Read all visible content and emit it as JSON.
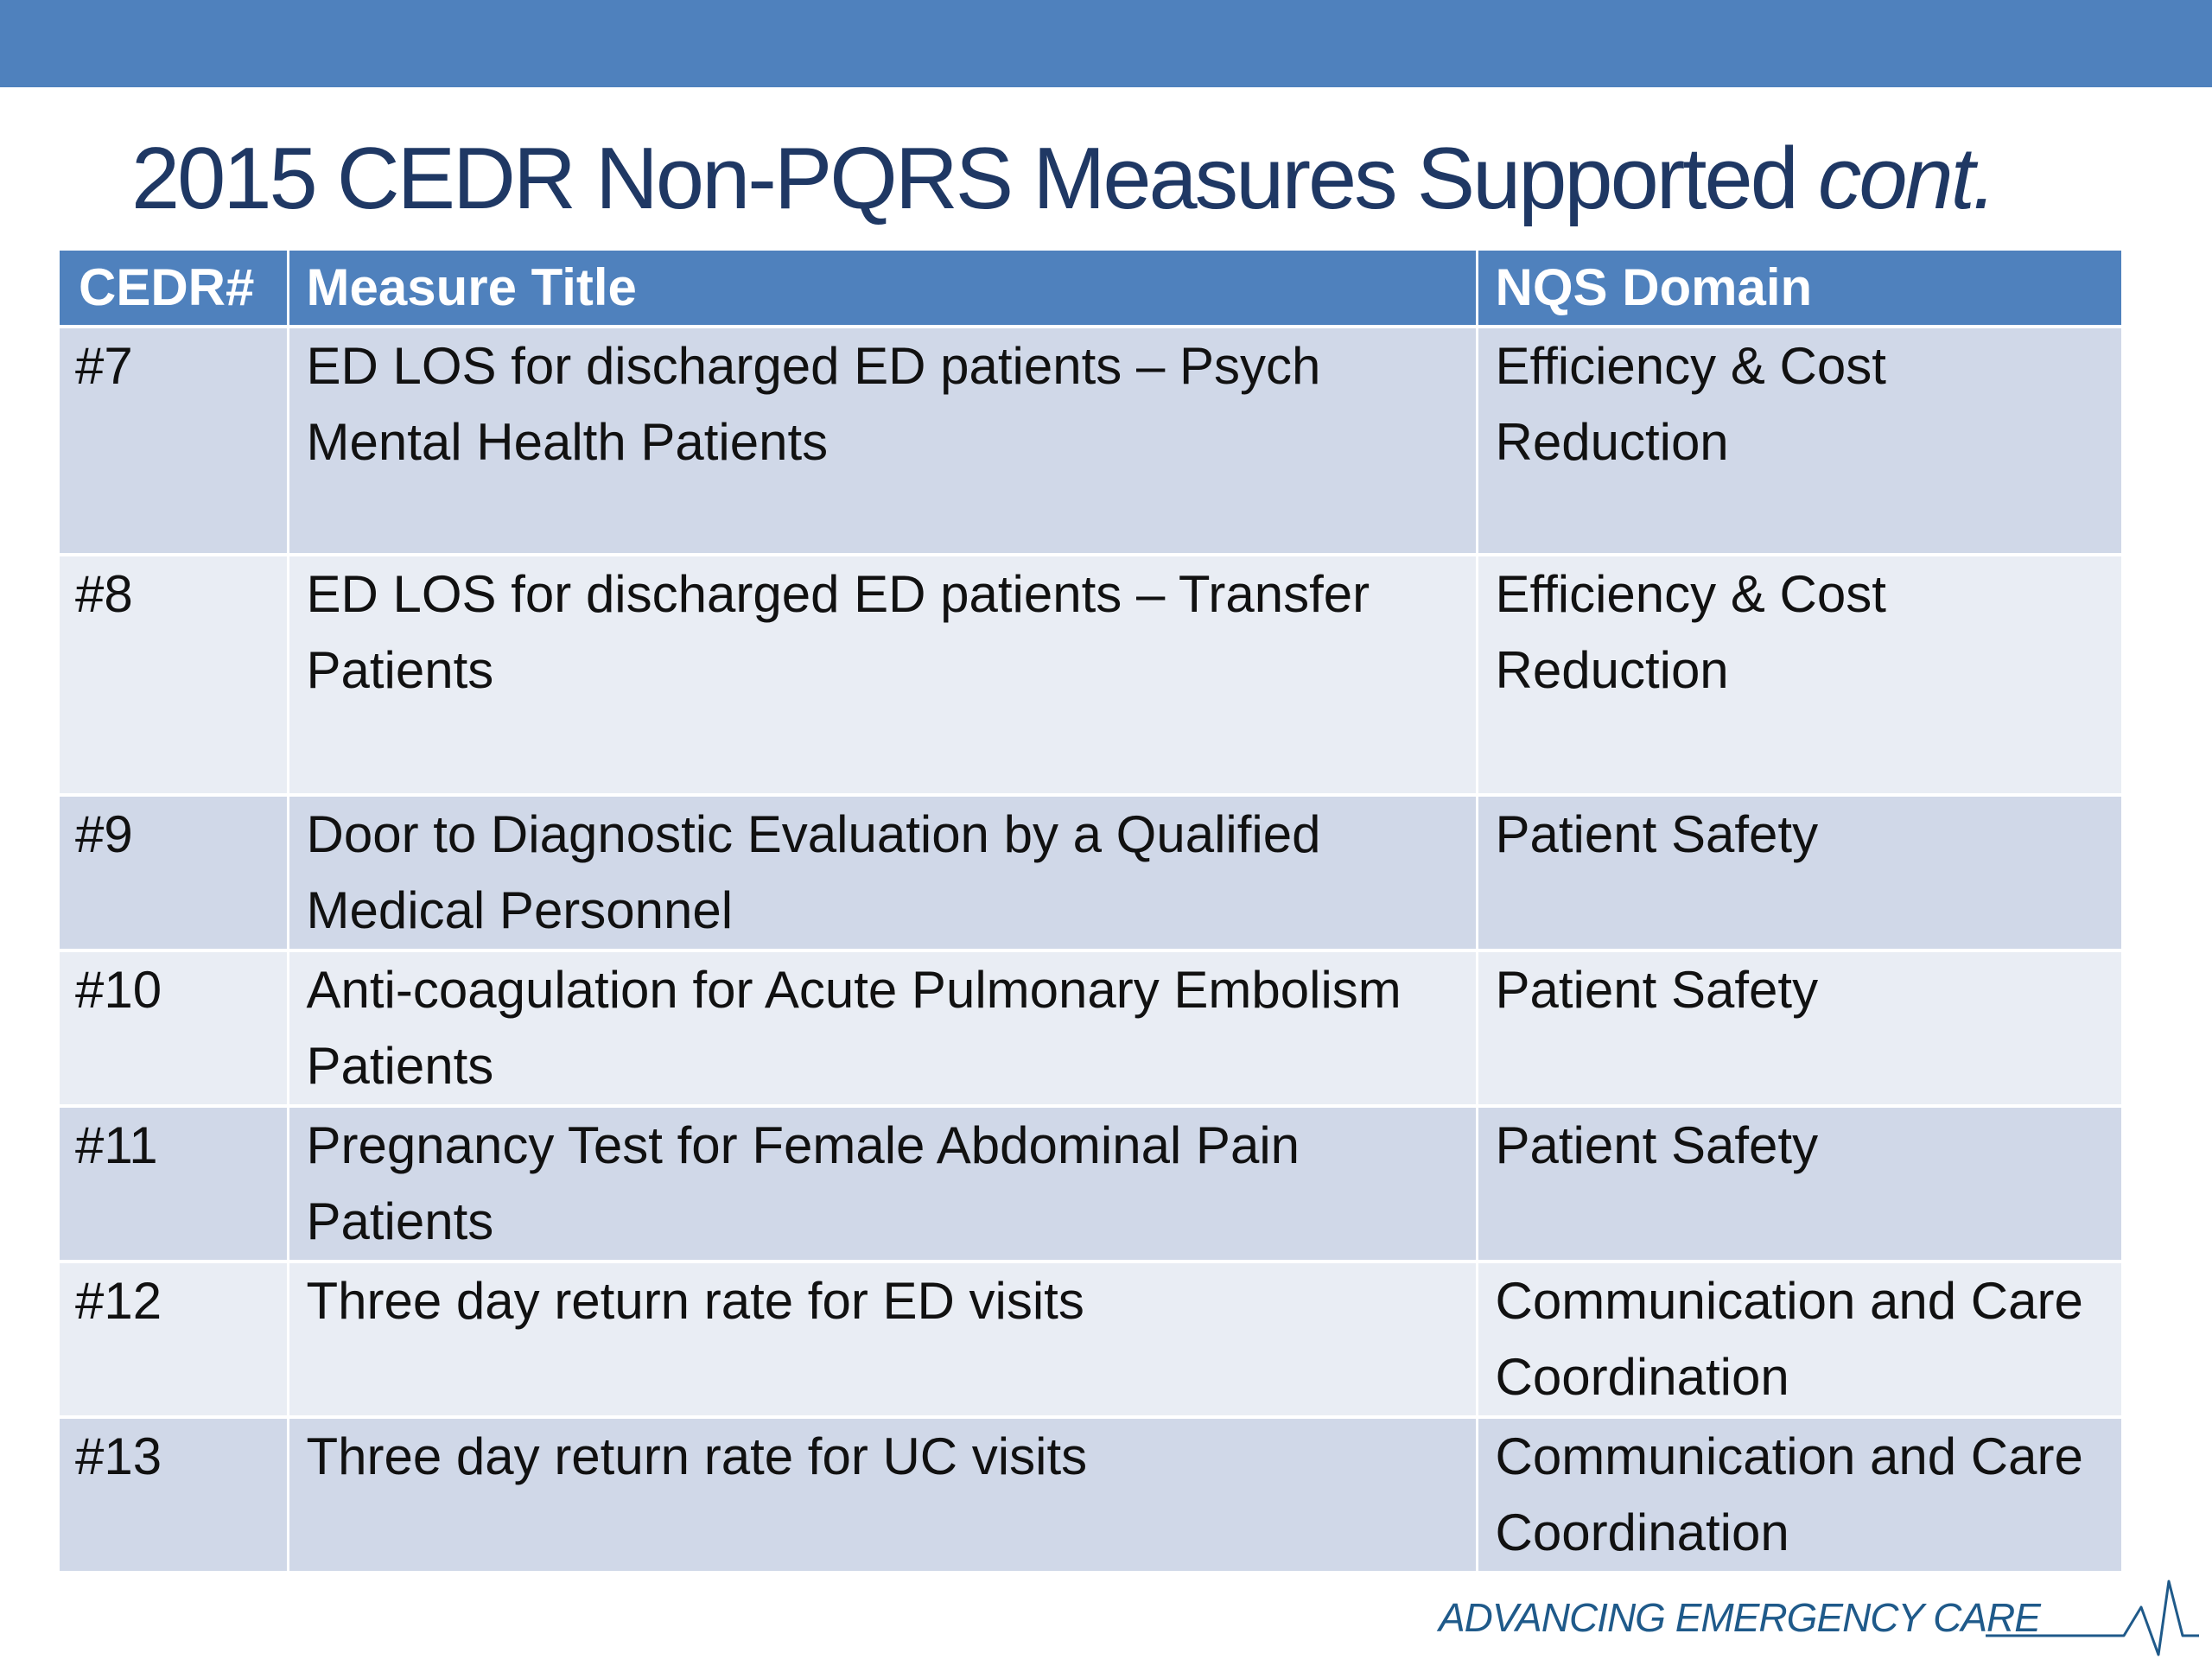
{
  "title": {
    "main": "2015 CEDR Non-PQRS Measures Supported",
    "suffix": "cont."
  },
  "table": {
    "headers": [
      "CEDR#",
      "Measure Title",
      "NQS Domain"
    ],
    "rows": [
      {
        "id": "#7",
        "title": "ED LOS for discharged ED patients – Psych Mental Health Patients",
        "domain": "Efficiency & Cost Reduction"
      },
      {
        "id": "#8",
        "title": "ED LOS for discharged ED patients – Transfer Patients",
        "domain": "Efficiency & Cost Reduction"
      },
      {
        "id": "#9",
        "title": "Door to Diagnostic Evaluation by a Qualified Medical Personnel",
        "domain": "Patient Safety"
      },
      {
        "id": "#10",
        "title": "Anti-coagulation for Acute Pulmonary Embolism Patients",
        "domain": "Patient Safety"
      },
      {
        "id": "#11",
        "title": "Pregnancy Test for Female Abdominal Pain Patients",
        "domain": "Patient Safety"
      },
      {
        "id": "#12",
        "title": "Three day return rate for ED visits",
        "domain": "Communication and Care Coordination"
      },
      {
        "id": "#13",
        "title": "Three day return rate for UC visits",
        "domain": "Communication and Care Coordination"
      }
    ]
  },
  "footer": {
    "logo_text": "ADVANCING EMERGENCY CARE"
  },
  "colors": {
    "header_bar": "#4f81bd",
    "title_text": "#1f3864",
    "row_dark": "#d0d8e8",
    "row_light": "#e9edf4",
    "logo_text": "#1f5a8a"
  },
  "icons": {
    "footer": "heartbeat-line-icon"
  }
}
